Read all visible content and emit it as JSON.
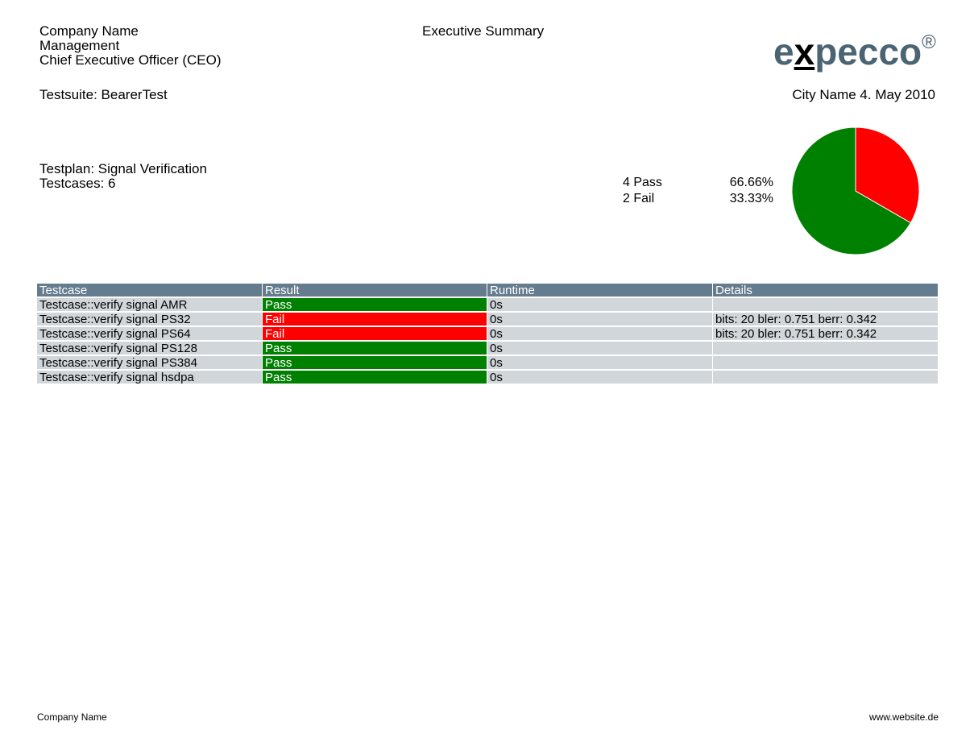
{
  "header": {
    "company": "Company Name",
    "department": "Management",
    "role": "Chief Executive Officer (CEO)",
    "title": "Executive Summary",
    "logo": [
      "e",
      "x",
      "pecco"
    ],
    "logo_mark": "®"
  },
  "testsuite": {
    "label": "Testsuite:",
    "value": "BearerTest"
  },
  "date": "City Name 4. May 2010",
  "testplan": {
    "label": "Testplan:",
    "value": "Signal Verification"
  },
  "testcases": {
    "label": "Testcases:",
    "value": "6"
  },
  "chart_data": {
    "type": "pie",
    "categories": [
      "4 Pass",
      "2 Fail"
    ],
    "values": [
      66.66,
      33.33
    ],
    "value_labels": [
      "66.66%",
      "33.33%"
    ],
    "colors": [
      "#008000",
      "#ff0000"
    ]
  },
  "table": {
    "columns": [
      "Testcase",
      "Result",
      "Runtime",
      "Details"
    ],
    "rows": [
      [
        "Testcase::verify signal AMR",
        "Pass",
        "0s",
        ""
      ],
      [
        "Testcase::verify signal PS32",
        "Fail",
        "0s",
        "bits: 20 bler: 0.751 berr: 0.342"
      ],
      [
        "Testcase::verify signal PS64",
        "Fail",
        "0s",
        "bits: 20 bler: 0.751 berr: 0.342"
      ],
      [
        "Testcase::verify signal PS128",
        "Pass",
        "0s",
        ""
      ],
      [
        "Testcase::verify signal PS384",
        "Pass",
        "0s",
        ""
      ],
      [
        "Testcase::verify signal hsdpa",
        "Pass",
        "0s",
        ""
      ]
    ],
    "result_colors": {
      "Pass": "#008000",
      "Fail": "#ff0000"
    }
  },
  "footer": {
    "left": "Company Name",
    "right": "www.website.de"
  }
}
